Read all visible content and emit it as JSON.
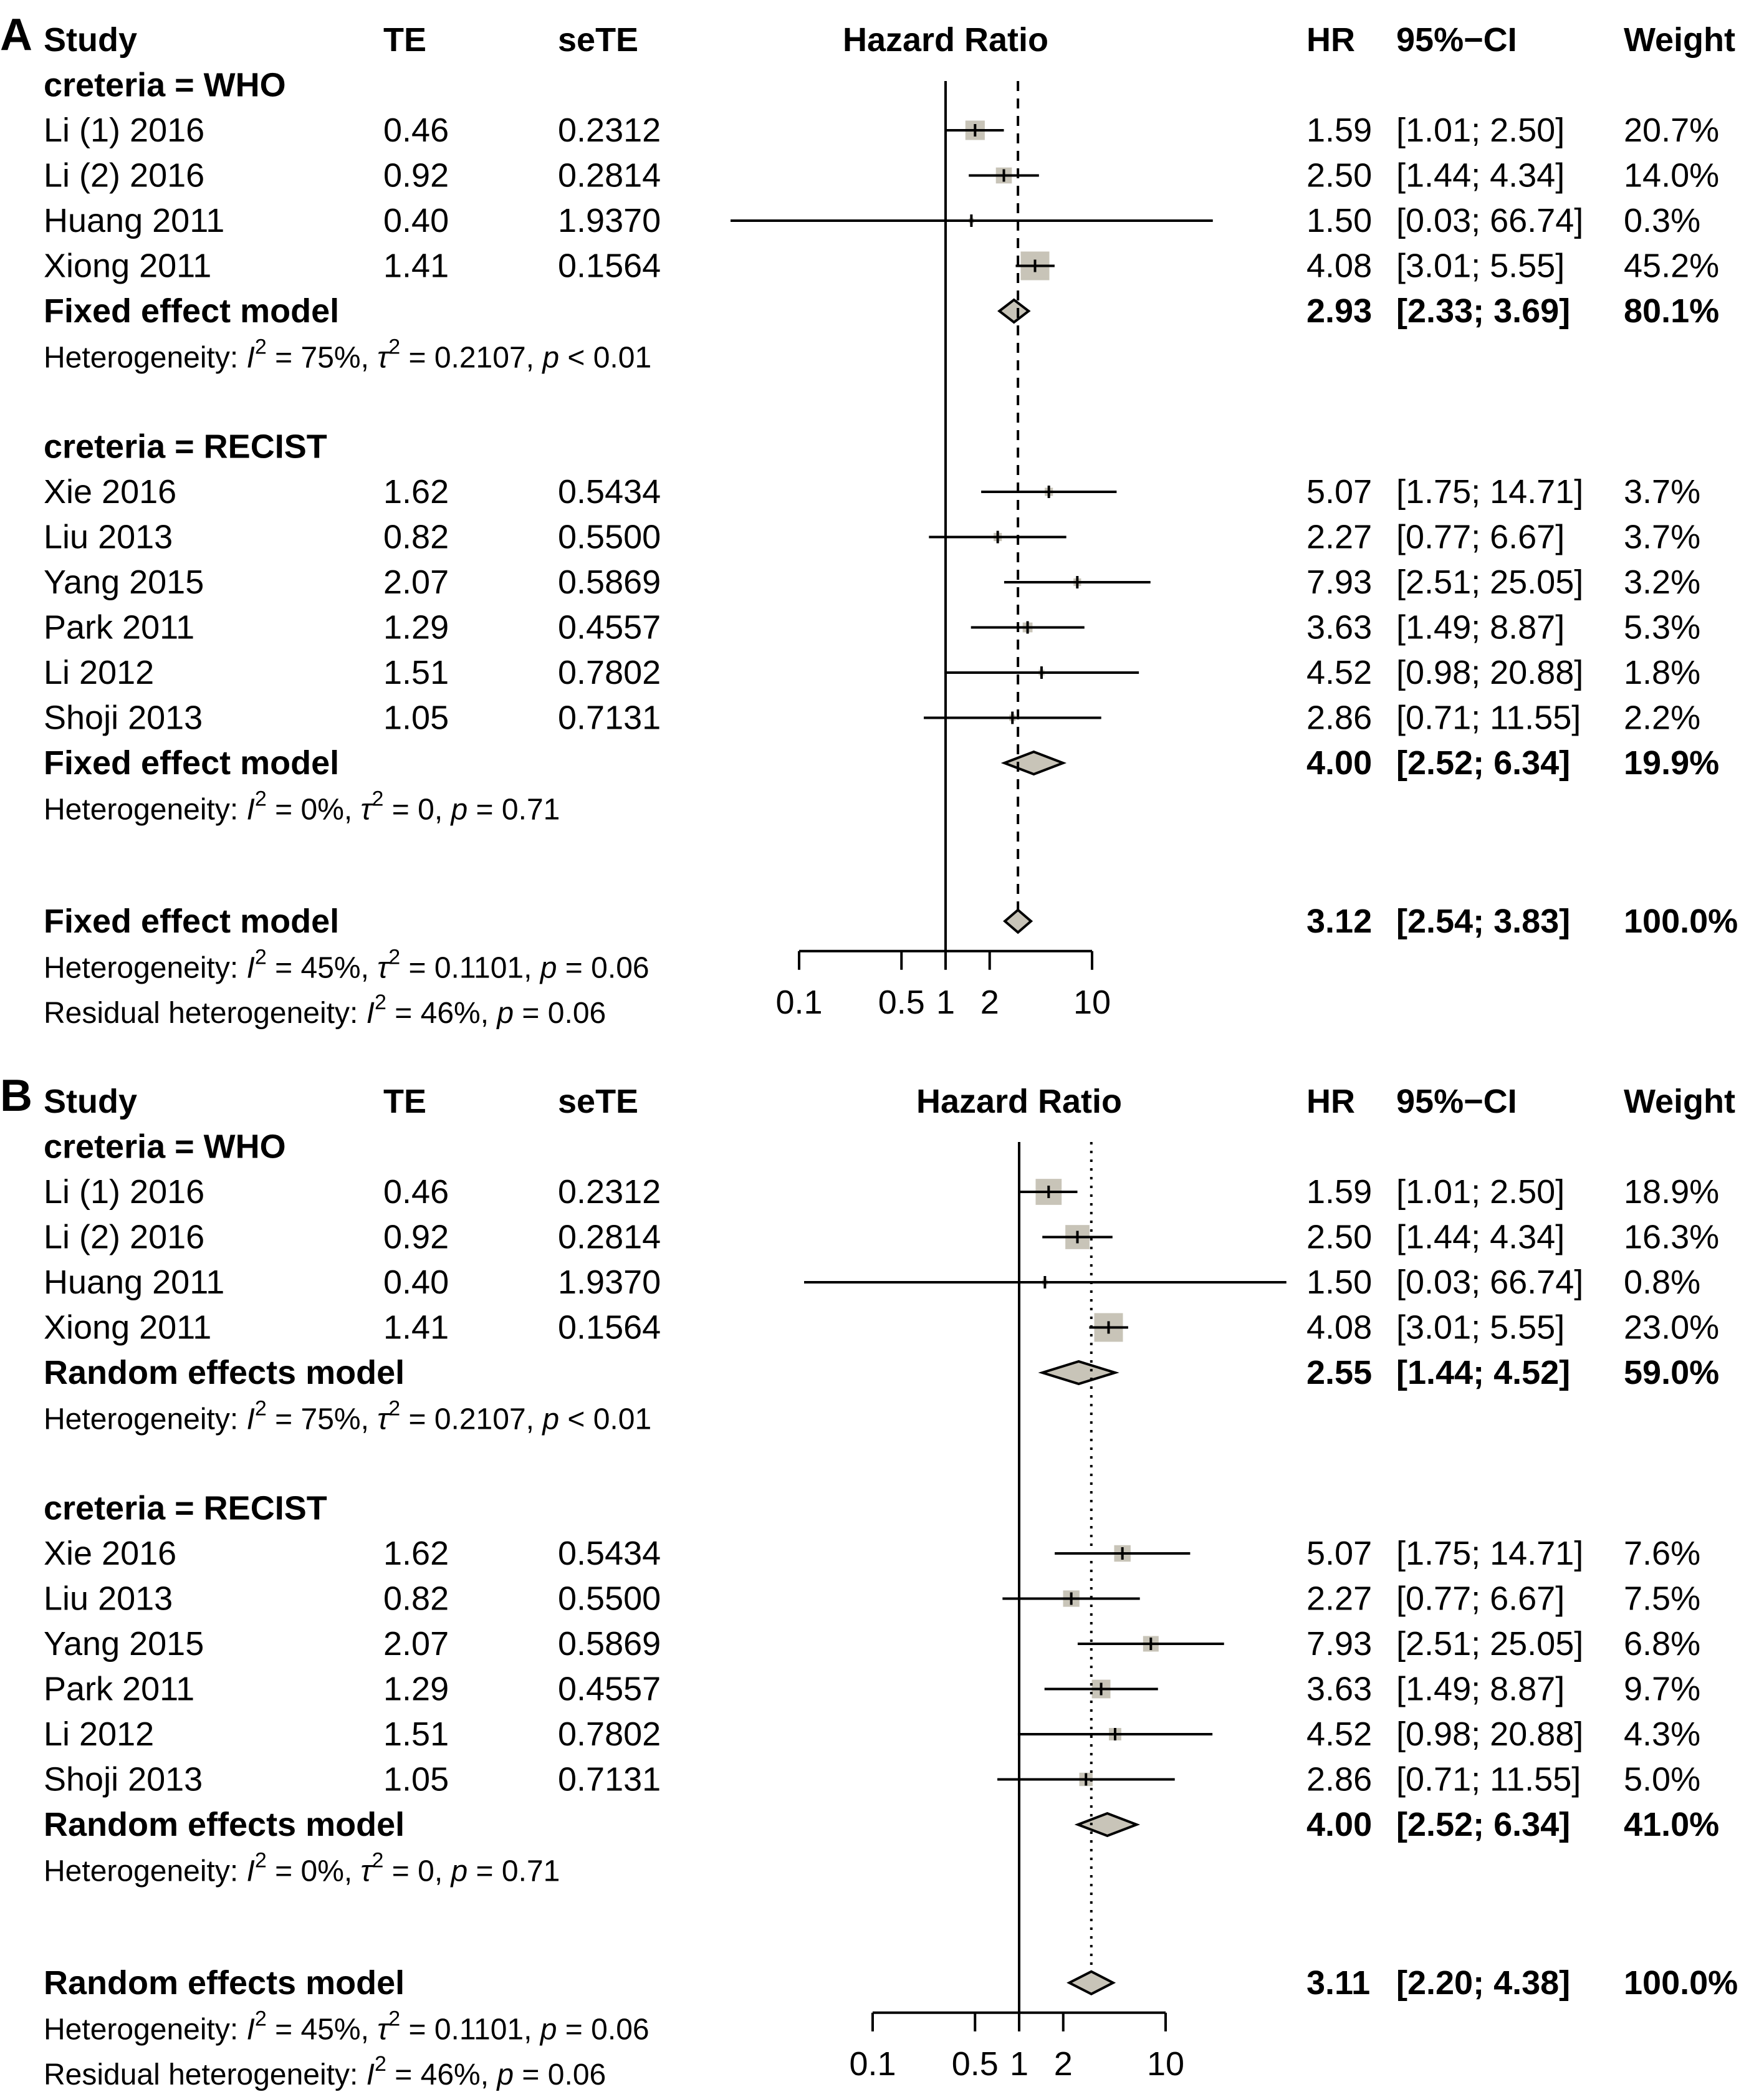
{
  "chart_data": [
    {
      "type": "forest",
      "panel_label": "A",
      "title": "Hazard Ratio",
      "columns": {
        "study": "Study",
        "te": "TE",
        "sete": "seTE",
        "hr": "HR",
        "ci": "95%−CI",
        "weight": "Weight"
      },
      "axis": {
        "scale": "log",
        "ticks": [
          0.1,
          0.5,
          1,
          2,
          10
        ],
        "tick_labels": [
          "0.1",
          "0.5",
          "1",
          "2",
          "10"
        ],
        "range": [
          0.1,
          10
        ],
        "null_line": 1,
        "pooled_line": 3.12,
        "pooled_line_style": "dashed"
      },
      "subgroups": [
        {
          "label": "creteria = WHO",
          "studies": [
            {
              "study": "Li (1) 2016",
              "te": "0.46",
              "sete": "0.2312",
              "hr": 1.59,
              "lower": 1.01,
              "upper": 2.5,
              "hr_text": "1.59",
              "ci_text": "[1.01;  2.50]",
              "weight_text": "20.7%",
              "weight": 20.7
            },
            {
              "study": "Li (2) 2016",
              "te": "0.92",
              "sete": "0.2814",
              "hr": 2.5,
              "lower": 1.44,
              "upper": 4.34,
              "hr_text": "2.50",
              "ci_text": "[1.44;  4.34]",
              "weight_text": "14.0%",
              "weight": 14.0
            },
            {
              "study": "Huang 2011",
              "te": "0.40",
              "sete": "1.9370",
              "hr": 1.5,
              "lower": 0.03,
              "upper": 66.74,
              "hr_text": "1.50",
              "ci_text": "[0.03; 66.74]",
              "weight_text": "0.3%",
              "weight": 0.3
            },
            {
              "study": "Xiong 2011",
              "te": "1.41",
              "sete": "0.1564",
              "hr": 4.08,
              "lower": 3.01,
              "upper": 5.55,
              "hr_text": "4.08",
              "ci_text": "[3.01;  5.55]",
              "weight_text": "45.2%",
              "weight": 45.2
            }
          ],
          "summary": {
            "label": "Fixed effect model",
            "hr": 2.93,
            "lower": 2.33,
            "upper": 3.69,
            "hr_text": "2.93",
            "ci_text": "[2.33;  3.69]",
            "weight_text": "80.1%"
          },
          "heterogeneity": {
            "i2": "75%",
            "tau2": "0.2107",
            "p": "< 0.01"
          }
        },
        {
          "label": "creteria = RECIST",
          "studies": [
            {
              "study": "Xie 2016",
              "te": "1.62",
              "sete": "0.5434",
              "hr": 5.07,
              "lower": 1.75,
              "upper": 14.71,
              "hr_text": "5.07",
              "ci_text": "[1.75; 14.71]",
              "weight_text": "3.7%",
              "weight": 3.7
            },
            {
              "study": "Liu 2013",
              "te": "0.82",
              "sete": "0.5500",
              "hr": 2.27,
              "lower": 0.77,
              "upper": 6.67,
              "hr_text": "2.27",
              "ci_text": "[0.77;  6.67]",
              "weight_text": "3.7%",
              "weight": 3.7
            },
            {
              "study": "Yang 2015",
              "te": "2.07",
              "sete": "0.5869",
              "hr": 7.93,
              "lower": 2.51,
              "upper": 25.05,
              "hr_text": "7.93",
              "ci_text": "[2.51; 25.05]",
              "weight_text": "3.2%",
              "weight": 3.2
            },
            {
              "study": "Park 2011",
              "te": "1.29",
              "sete": "0.4557",
              "hr": 3.63,
              "lower": 1.49,
              "upper": 8.87,
              "hr_text": "3.63",
              "ci_text": "[1.49;  8.87]",
              "weight_text": "5.3%",
              "weight": 5.3
            },
            {
              "study": "Li 2012",
              "te": "1.51",
              "sete": "0.7802",
              "hr": 4.52,
              "lower": 0.98,
              "upper": 20.88,
              "hr_text": "4.52",
              "ci_text": "[0.98; 20.88]",
              "weight_text": "1.8%",
              "weight": 1.8
            },
            {
              "study": "Shoji 2013",
              "te": "1.05",
              "sete": "0.7131",
              "hr": 2.86,
              "lower": 0.71,
              "upper": 11.55,
              "hr_text": "2.86",
              "ci_text": "[0.71; 11.55]",
              "weight_text": "2.2%",
              "weight": 2.2
            }
          ],
          "summary": {
            "label": "Fixed effect model",
            "hr": 4.0,
            "lower": 2.52,
            "upper": 6.34,
            "hr_text": "4.00",
            "ci_text": "[2.52;  6.34]",
            "weight_text": "19.9%"
          },
          "heterogeneity": {
            "i2": "0%",
            "tau2": "0",
            "p": "= 0.71"
          }
        }
      ],
      "overall": {
        "label": "Fixed effect model",
        "hr": 3.12,
        "lower": 2.54,
        "upper": 3.83,
        "hr_text": "3.12",
        "ci_text": "[2.54;  3.83]",
        "weight_text": "100.0%"
      },
      "overall_heterogeneity": {
        "i2": "45%",
        "tau2": "0.1101",
        "p": "= 0.06"
      },
      "residual_heterogeneity": {
        "i2": "46%",
        "p": "= 0.06"
      }
    },
    {
      "type": "forest",
      "panel_label": "B",
      "title": "Hazard Ratio",
      "columns": {
        "study": "Study",
        "te": "TE",
        "sete": "seTE",
        "hr": "HR",
        "ci": "95%−CI",
        "weight": "Weight"
      },
      "axis": {
        "scale": "log",
        "ticks": [
          0.1,
          0.5,
          1,
          2,
          10
        ],
        "tick_labels": [
          "0.1",
          "0.5",
          "1",
          "2",
          "10"
        ],
        "range": [
          0.1,
          10
        ],
        "null_line": 1,
        "pooled_line": 3.11,
        "pooled_line_style": "dotted"
      },
      "subgroups": [
        {
          "label": "creteria = WHO",
          "studies": [
            {
              "study": "Li (1) 2016",
              "te": "0.46",
              "sete": "0.2312",
              "hr": 1.59,
              "lower": 1.01,
              "upper": 2.5,
              "hr_text": "1.59",
              "ci_text": "[1.01;  2.50]",
              "weight_text": "18.9%",
              "weight": 18.9
            },
            {
              "study": "Li (2) 2016",
              "te": "0.92",
              "sete": "0.2814",
              "hr": 2.5,
              "lower": 1.44,
              "upper": 4.34,
              "hr_text": "2.50",
              "ci_text": "[1.44;  4.34]",
              "weight_text": "16.3%",
              "weight": 16.3
            },
            {
              "study": "Huang 2011",
              "te": "0.40",
              "sete": "1.9370",
              "hr": 1.5,
              "lower": 0.03,
              "upper": 66.74,
              "hr_text": "1.50",
              "ci_text": "[0.03; 66.74]",
              "weight_text": "0.8%",
              "weight": 0.8
            },
            {
              "study": "Xiong 2011",
              "te": "1.41",
              "sete": "0.1564",
              "hr": 4.08,
              "lower": 3.01,
              "upper": 5.55,
              "hr_text": "4.08",
              "ci_text": "[3.01;  5.55]",
              "weight_text": "23.0%",
              "weight": 23.0
            }
          ],
          "summary": {
            "label": "Random effects model",
            "hr": 2.55,
            "lower": 1.44,
            "upper": 4.52,
            "hr_text": "2.55",
            "ci_text": "[1.44;  4.52]",
            "weight_text": "59.0%"
          },
          "heterogeneity": {
            "i2": "75%",
            "tau2": "0.2107",
            "p": "< 0.01"
          }
        },
        {
          "label": "creteria = RECIST",
          "studies": [
            {
              "study": "Xie 2016",
              "te": "1.62",
              "sete": "0.5434",
              "hr": 5.07,
              "lower": 1.75,
              "upper": 14.71,
              "hr_text": "5.07",
              "ci_text": "[1.75; 14.71]",
              "weight_text": "7.6%",
              "weight": 7.6
            },
            {
              "study": "Liu 2013",
              "te": "0.82",
              "sete": "0.5500",
              "hr": 2.27,
              "lower": 0.77,
              "upper": 6.67,
              "hr_text": "2.27",
              "ci_text": "[0.77;  6.67]",
              "weight_text": "7.5%",
              "weight": 7.5
            },
            {
              "study": "Yang 2015",
              "te": "2.07",
              "sete": "0.5869",
              "hr": 7.93,
              "lower": 2.51,
              "upper": 25.05,
              "hr_text": "7.93",
              "ci_text": "[2.51; 25.05]",
              "weight_text": "6.8%",
              "weight": 6.8
            },
            {
              "study": "Park 2011",
              "te": "1.29",
              "sete": "0.4557",
              "hr": 3.63,
              "lower": 1.49,
              "upper": 8.87,
              "hr_text": "3.63",
              "ci_text": "[1.49;  8.87]",
              "weight_text": "9.7%",
              "weight": 9.7
            },
            {
              "study": "Li 2012",
              "te": "1.51",
              "sete": "0.7802",
              "hr": 4.52,
              "lower": 0.98,
              "upper": 20.88,
              "hr_text": "4.52",
              "ci_text": "[0.98; 20.88]",
              "weight_text": "4.3%",
              "weight": 4.3
            },
            {
              "study": "Shoji 2013",
              "te": "1.05",
              "sete": "0.7131",
              "hr": 2.86,
              "lower": 0.71,
              "upper": 11.55,
              "hr_text": "2.86",
              "ci_text": "[0.71; 11.55]",
              "weight_text": "5.0%",
              "weight": 5.0
            }
          ],
          "summary": {
            "label": "Random effects model",
            "hr": 4.0,
            "lower": 2.52,
            "upper": 6.34,
            "hr_text": "4.00",
            "ci_text": "[2.52;  6.34]",
            "weight_text": "41.0%"
          },
          "heterogeneity": {
            "i2": "0%",
            "tau2": "0",
            "p": "= 0.71"
          }
        }
      ],
      "overall": {
        "label": "Random effects model",
        "hr": 3.11,
        "lower": 2.2,
        "upper": 4.38,
        "hr_text": "3.11",
        "ci_text": "[2.20;  4.38]",
        "weight_text": "100.0%"
      },
      "overall_heterogeneity": {
        "i2": "45%",
        "tau2": "0.1101",
        "p": "= 0.06"
      },
      "residual_heterogeneity": {
        "i2": "46%",
        "p": "= 0.06"
      }
    }
  ],
  "text": {
    "heterogeneity": "Heterogeneity: ",
    "residual_heterogeneity": "Residual heterogeneity: ",
    "i_symbol": "I",
    "i_sup": "2",
    "tau_symbol": "τ",
    "tau_sup": "2",
    "p_symbol": "p",
    "eq": " = ",
    "sep": ",  ",
    "sep_p": ",  "
  },
  "colors": {
    "box_fill": "#c8c4b8",
    "diamond_fill": "#c8c4b8",
    "line": "#000000"
  }
}
